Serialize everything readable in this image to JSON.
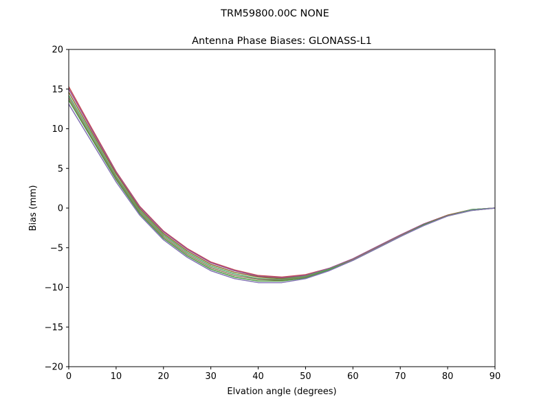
{
  "suptitle": "TRM59800.00C    NONE",
  "chart_data": {
    "type": "line",
    "title": "Antenna Phase Biases: GLONASS-L1",
    "xlabel": "Elvation angle (degrees)",
    "ylabel": "Bias (mm)",
    "xlim": [
      0,
      90
    ],
    "ylim": [
      -20,
      20
    ],
    "xticks": [
      0,
      10,
      20,
      30,
      40,
      50,
      60,
      70,
      80,
      90
    ],
    "yticks": [
      -20,
      -15,
      -10,
      -5,
      0,
      5,
      10,
      15,
      20
    ],
    "xtick_labels": [
      "0",
      "10",
      "20",
      "30",
      "40",
      "50",
      "60",
      "70",
      "80",
      "90"
    ],
    "ytick_labels": [
      "−20",
      "−15",
      "−10",
      "−5",
      "0",
      "5",
      "10",
      "15",
      "20"
    ],
    "grid": false,
    "x": [
      0,
      5,
      10,
      15,
      20,
      25,
      30,
      35,
      40,
      45,
      50,
      55,
      60,
      65,
      70,
      75,
      80,
      85,
      90
    ],
    "series": [
      {
        "color": "#c44e52",
        "values": [
          15.3,
          9.9,
          4.6,
          0.2,
          -2.9,
          -5.1,
          -6.8,
          -7.8,
          -8.5,
          -8.7,
          -8.4,
          -7.6,
          -6.4,
          -4.9,
          -3.4,
          -2.0,
          -0.9,
          -0.2,
          0.0
        ]
      },
      {
        "color": "#9b4f96",
        "values": [
          15.0,
          9.7,
          4.5,
          0.1,
          -3.0,
          -5.2,
          -6.9,
          -7.9,
          -8.6,
          -8.8,
          -8.5,
          -7.6,
          -6.4,
          -4.9,
          -3.4,
          -2.0,
          -0.9,
          -0.2,
          0.0
        ]
      },
      {
        "color": "#8c6d31",
        "values": [
          14.6,
          9.4,
          4.3,
          -0.1,
          -3.2,
          -5.4,
          -7.1,
          -8.1,
          -8.7,
          -8.9,
          -8.6,
          -7.7,
          -6.5,
          -5.0,
          -3.5,
          -2.1,
          -0.9,
          -0.2,
          0.0
        ]
      },
      {
        "color": "#55a868",
        "values": [
          14.2,
          9.1,
          4.0,
          -0.3,
          -3.4,
          -5.6,
          -7.3,
          -8.3,
          -8.9,
          -9.0,
          -8.6,
          -7.7,
          -6.5,
          -5.0,
          -3.5,
          -2.1,
          -1.0,
          -0.2,
          0.0
        ]
      },
      {
        "color": "#937860",
        "values": [
          13.9,
          8.8,
          3.8,
          -0.5,
          -3.6,
          -5.8,
          -7.5,
          -8.5,
          -9.0,
          -9.1,
          -8.7,
          -7.8,
          -6.5,
          -5.0,
          -3.5,
          -2.1,
          -1.0,
          -0.3,
          0.0
        ]
      },
      {
        "color": "#4c9a3f",
        "values": [
          13.6,
          8.6,
          3.6,
          -0.7,
          -3.8,
          -6.0,
          -7.7,
          -8.7,
          -9.2,
          -9.2,
          -8.8,
          -7.8,
          -6.6,
          -5.1,
          -3.6,
          -2.1,
          -1.0,
          -0.3,
          0.0
        ]
      },
      {
        "color": "#8172b2",
        "values": [
          13.1,
          8.2,
          3.3,
          -0.9,
          -4.0,
          -6.2,
          -7.9,
          -8.9,
          -9.4,
          -9.4,
          -8.9,
          -7.9,
          -6.6,
          -5.1,
          -3.6,
          -2.2,
          -1.0,
          -0.3,
          0.0
        ]
      }
    ]
  }
}
